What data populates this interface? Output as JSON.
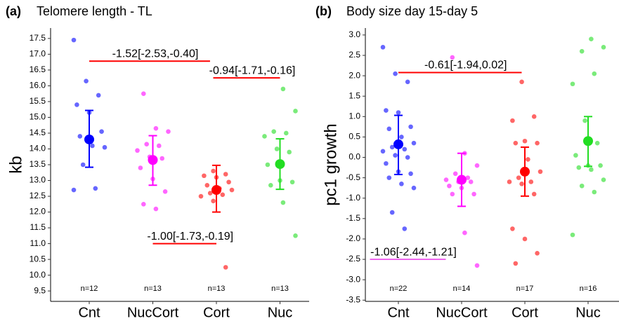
{
  "chart_data": [
    {
      "type": "strip",
      "panel_label": "(a)",
      "title": "Telomere length - TL",
      "ylabel": "kb",
      "categories": [
        "Cnt",
        "NucCort",
        "Cort",
        "Nuc"
      ],
      "ylim": [
        9.17,
        17.83
      ],
      "yticks": [
        9.5,
        {
          "value": 10,
          "label": "10.0"
        },
        10.5,
        {
          "value": 11,
          "label": "11.0"
        },
        11.5,
        {
          "value": 12,
          "label": "12.0"
        },
        12.5,
        {
          "value": 13,
          "label": "13.0"
        },
        13.5,
        {
          "value": 14,
          "label": "14.0"
        },
        14.5,
        {
          "value": 15,
          "label": "15.0"
        },
        15.5,
        {
          "value": 16,
          "label": "16.0"
        },
        16.5,
        {
          "value": 17,
          "label": "17.0"
        },
        17.5
      ],
      "series": [
        {
          "color": "#0000ff",
          "values": [
            17.45,
            16.15,
            15.7,
            15.4,
            15.15,
            14.55,
            14.4,
            14.1,
            14.05,
            13.5,
            12.75,
            12.7
          ],
          "mean": 14.3,
          "ci": [
            13.42,
            15.22
          ],
          "n_label": "n=12"
        },
        {
          "color": "#ff00ff",
          "values": [
            15.75,
            14.65,
            14.55,
            14.15,
            14.1,
            13.95,
            13.75,
            13.7,
            13.4,
            13.05,
            12.65,
            12.25,
            12.1
          ],
          "mean": 13.65,
          "ci": [
            12.85,
            14.42
          ],
          "n_label": "n=13"
        },
        {
          "color": "#ff0000",
          "values": [
            13.3,
            13.2,
            13.15,
            13.1,
            12.95,
            12.85,
            12.75,
            12.7,
            12.6,
            12.55,
            12.5,
            12.35,
            10.25
          ],
          "mean": 12.7,
          "ci": [
            12.0,
            13.48
          ],
          "n_label": "n=13"
        },
        {
          "color": "#22dd22",
          "values": [
            15.9,
            15.2,
            14.55,
            14.5,
            14.4,
            14.0,
            13.9,
            13.5,
            13.0,
            12.95,
            12.85,
            12.3,
            11.25
          ],
          "mean": 13.52,
          "ci": [
            12.72,
            14.32
          ],
          "n_label": "n=13"
        }
      ],
      "annotations": [
        {
          "text": "-1.52[-2.53,-0.40]",
          "y": 16.78,
          "x": [
            0,
            1.9
          ],
          "color": "#ff0000"
        },
        {
          "text": "-0.94[-1.71,-0.16]",
          "y": 16.25,
          "x": [
            1.95,
            3
          ],
          "color": "#ff0000"
        },
        {
          "text": "-1.00[-1.73,-0.19]",
          "y": 11.0,
          "x": [
            1,
            2
          ],
          "color": "#ff0000"
        }
      ]
    },
    {
      "type": "strip",
      "panel_label": "(b)",
      "title": "Body size day 15-day 5",
      "ylabel": "pc1 growth",
      "categories": [
        "Cnt",
        "NucCort",
        "Cort",
        "Nuc"
      ],
      "ylim": [
        -3.53,
        3.17
      ],
      "yticks": [
        -3.5,
        {
          "value": -3,
          "label": "-3.0"
        },
        -2.5,
        {
          "value": -2,
          "label": "-2.0"
        },
        -1.5,
        {
          "value": -1,
          "label": "-1.0"
        },
        -0.5,
        {
          "value": 0,
          "label": "0.0"
        },
        0.5,
        {
          "value": 1,
          "label": "1.0"
        },
        1.5,
        {
          "value": 2,
          "label": "2.0"
        },
        2.5,
        {
          "value": 3,
          "label": "3.0"
        }
      ],
      "series": [
        {
          "color": "#0000ff",
          "values": [
            2.7,
            2.05,
            1.85,
            1.15,
            1.1,
            0.75,
            0.7,
            0.5,
            0.35,
            0.25,
            0.2,
            0.15,
            0.05,
            0.0,
            -0.15,
            -0.35,
            -0.4,
            -0.5,
            -0.65,
            -0.75,
            -1.35,
            -1.75
          ],
          "mean": 0.32,
          "ci": [
            -0.42,
            1.03
          ],
          "n_label": "n=22"
        },
        {
          "color": "#ff00ff",
          "values": [
            2.45,
            0.1,
            -0.2,
            -0.4,
            -0.5,
            -0.55,
            -0.6,
            -0.6,
            -0.7,
            -0.75,
            -0.9,
            -0.9,
            -1.85,
            -2.65
          ],
          "mean": -0.55,
          "ci": [
            -1.2,
            0.1
          ],
          "n_label": "n=14"
        },
        {
          "color": "#ff0000",
          "values": [
            1.85,
            1.0,
            0.9,
            0.4,
            0.35,
            0.35,
            -0.05,
            -0.35,
            -0.5,
            -0.6,
            -0.6,
            -0.65,
            -0.9,
            -1.75,
            -2.0,
            -2.35,
            -2.6
          ],
          "mean": -0.35,
          "ci": [
            -0.95,
            0.25
          ],
          "n_label": "n=17"
        },
        {
          "color": "#22dd22",
          "values": [
            2.9,
            2.7,
            2.6,
            2.05,
            1.8,
            0.9,
            0.35,
            0.05,
            -0.2,
            -0.2,
            -0.25,
            -0.3,
            -0.55,
            -0.7,
            -0.85,
            -1.9
          ],
          "mean": 0.4,
          "ci": [
            -0.22,
            1.0
          ],
          "n_label": "n=16"
        }
      ],
      "annotations": [
        {
          "text": "-0.61[-1.94,0.02]",
          "y": 2.08,
          "x": [
            0,
            1.95
          ],
          "color": "#ff0000"
        },
        {
          "text": "-1.06[-2.44,-1.21]",
          "y": -2.5,
          "x": [
            -0.45,
            0.75
          ],
          "color": "#ee66ee"
        }
      ]
    }
  ]
}
